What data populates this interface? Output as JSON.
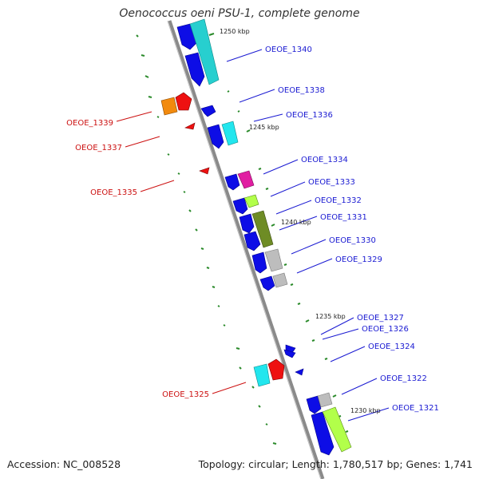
{
  "title": "Oenococcus oeni PSU-1, complete genome",
  "footer": {
    "accession": "Accession: NC_008528",
    "topology": "Topology: circular; Length: 1,780,517 bp; Genes: 1,741"
  },
  "ticks": [
    "1250 kbp",
    "1245 kbp",
    "1240 kbp",
    "1235 kbp",
    "1230 kbp"
  ],
  "genes_right": [
    "OEOE_1340",
    "OEOE_1338",
    "OEOE_1336",
    "OEOE_1334",
    "OEOE_1333",
    "OEOE_1332",
    "OEOE_1331",
    "OEOE_1330",
    "OEOE_1329",
    "OEOE_1327",
    "OEOE_1326",
    "OEOE_1324",
    "OEOE_1322",
    "OEOE_1321"
  ],
  "genes_left": [
    "OEOE_1339",
    "OEOE_1337",
    "OEOE_1335",
    "OEOE_1325"
  ]
}
